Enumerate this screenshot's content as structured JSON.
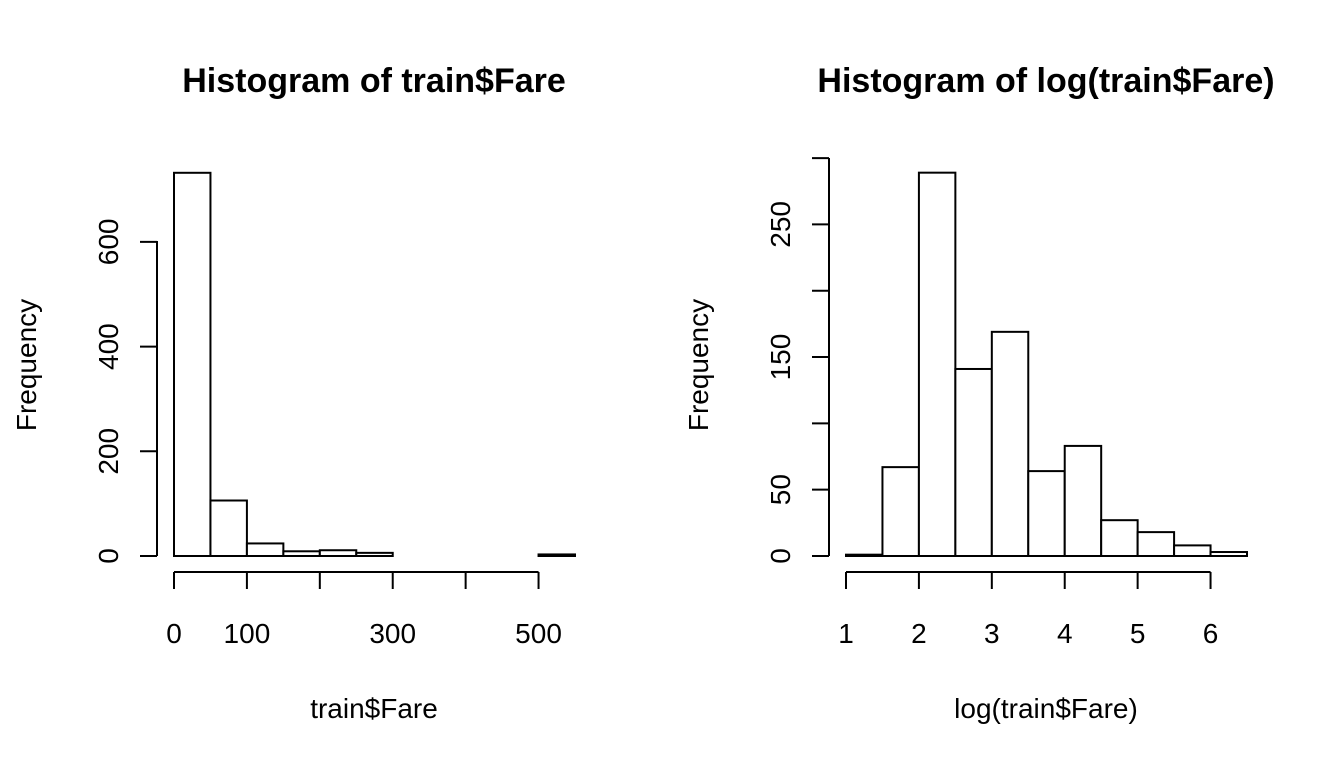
{
  "chart_data": [
    {
      "type": "bar",
      "title": "Histogram of train$Fare",
      "xlabel": "train$Fare",
      "ylabel": "Frequency",
      "bin_edges": [
        0,
        50,
        100,
        150,
        200,
        250,
        300,
        350,
        400,
        450,
        500,
        550
      ],
      "values": [
        732,
        106,
        24,
        9,
        11,
        6,
        0,
        0,
        0,
        0,
        3
      ],
      "xticks": [
        0,
        100,
        200,
        300,
        400,
        500
      ],
      "xtick_labels": [
        "0",
        "100",
        "",
        "300",
        "",
        "500"
      ],
      "yticks": [
        0,
        200,
        400,
        600
      ],
      "ytick_labels": [
        "0",
        "200",
        "400",
        "600"
      ],
      "xlim": [
        0,
        550
      ],
      "ylim": [
        0,
        750
      ],
      "grid": false
    },
    {
      "type": "bar",
      "title": "Histogram of log(train$Fare)",
      "xlabel": "log(train$Fare)",
      "ylabel": "Frequency",
      "bin_edges": [
        1,
        1.5,
        2,
        2.5,
        3,
        3.5,
        4,
        4.5,
        5,
        5.5,
        6,
        6.5
      ],
      "values": [
        1,
        67,
        289,
        141,
        169,
        64,
        83,
        27,
        18,
        8,
        3
      ],
      "xticks": [
        1,
        2,
        3,
        4,
        5,
        6
      ],
      "xtick_labels": [
        "1",
        "2",
        "3",
        "4",
        "5",
        "6"
      ],
      "yticks": [
        0,
        50,
        100,
        150,
        200,
        250,
        300
      ],
      "ytick_labels": [
        "0",
        "50",
        "",
        "150",
        "",
        "250",
        ""
      ],
      "xlim": [
        1,
        6.5
      ],
      "ylim": [
        0,
        300
      ],
      "grid": false
    }
  ]
}
